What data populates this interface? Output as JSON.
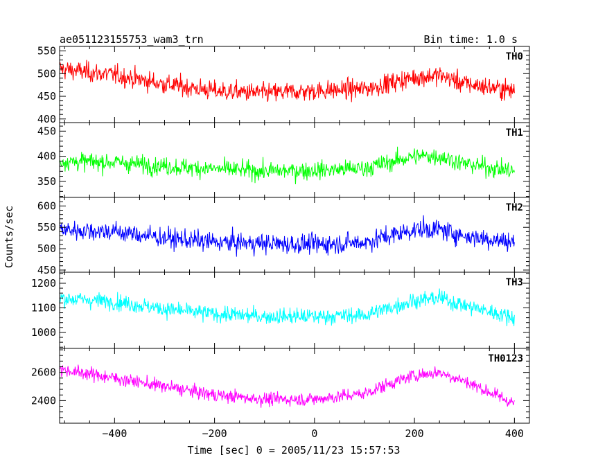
{
  "chart_data": {
    "type": "line",
    "title": "ae051123155753_wam3_trn",
    "bin_time": "Bin time: 1.0 s",
    "xlabel": "Time [sec] 0 = 2005/11/23 15:57:53",
    "ylabel": "Counts/sec",
    "x_range": [
      -509,
      400
    ],
    "xlim": [
      -510,
      430
    ],
    "x_ticks": [
      -400,
      -200,
      0,
      200,
      400
    ],
    "x_tick_labels": [
      "−400",
      "−200",
      "0",
      "200",
      "400"
    ],
    "grid": false,
    "panels": [
      {
        "name": "TH0",
        "color": "#ff0000",
        "ylim": [
          392,
          560
        ],
        "y_ticks": [
          400,
          450,
          500,
          550
        ],
        "noise": 28,
        "baseline": [
          [
            -509,
            510
          ],
          [
            -400,
            497
          ],
          [
            -300,
            477
          ],
          [
            -200,
            462
          ],
          [
            -100,
            457
          ],
          [
            0,
            462
          ],
          [
            100,
            466
          ],
          [
            200,
            492
          ],
          [
            250,
            496
          ],
          [
            300,
            478
          ],
          [
            400,
            462
          ]
        ]
      },
      {
        "name": "TH1",
        "color": "#00ff00",
        "ylim": [
          318,
          467
        ],
        "y_ticks": [
          350,
          400,
          450
        ],
        "noise": 23,
        "baseline": [
          [
            -509,
            390
          ],
          [
            -400,
            388
          ],
          [
            -300,
            380
          ],
          [
            -200,
            375
          ],
          [
            -100,
            370
          ],
          [
            0,
            372
          ],
          [
            100,
            376
          ],
          [
            200,
            400
          ],
          [
            250,
            400
          ],
          [
            300,
            385
          ],
          [
            400,
            370
          ]
        ]
      },
      {
        "name": "TH2",
        "color": "#0000ff",
        "ylim": [
          445,
          620
        ],
        "y_ticks": [
          450,
          500,
          550,
          600
        ],
        "noise": 30,
        "baseline": [
          [
            -509,
            545
          ],
          [
            -400,
            540
          ],
          [
            -300,
            525
          ],
          [
            -200,
            515
          ],
          [
            -100,
            512
          ],
          [
            0,
            510
          ],
          [
            100,
            515
          ],
          [
            200,
            545
          ],
          [
            250,
            545
          ],
          [
            300,
            530
          ],
          [
            400,
            515
          ]
        ]
      },
      {
        "name": "TH3",
        "color": "#00ffff",
        "ylim": [
          935,
          1245
        ],
        "y_ticks": [
          1000,
          1100,
          1200
        ],
        "noise": 42,
        "baseline": [
          [
            -509,
            1140
          ],
          [
            -400,
            1125
          ],
          [
            -300,
            1095
          ],
          [
            -200,
            1075
          ],
          [
            -100,
            1065
          ],
          [
            0,
            1065
          ],
          [
            100,
            1070
          ],
          [
            200,
            1130
          ],
          [
            250,
            1140
          ],
          [
            300,
            1110
          ],
          [
            400,
            1060
          ]
        ]
      },
      {
        "name": "TH0123",
        "color": "#ff00ff",
        "ylim": [
          2240,
          2770
        ],
        "y_ticks": [
          2400,
          2600
        ],
        "y_tick_labels_spaced": true,
        "noise": 60,
        "baseline": [
          [
            -509,
            2620
          ],
          [
            -450,
            2590
          ],
          [
            -400,
            2560
          ],
          [
            -300,
            2500
          ],
          [
            -200,
            2440
          ],
          [
            -100,
            2410
          ],
          [
            0,
            2410
          ],
          [
            100,
            2450
          ],
          [
            150,
            2520
          ],
          [
            200,
            2580
          ],
          [
            250,
            2600
          ],
          [
            300,
            2540
          ],
          [
            350,
            2460
          ],
          [
            400,
            2380
          ]
        ]
      }
    ]
  }
}
